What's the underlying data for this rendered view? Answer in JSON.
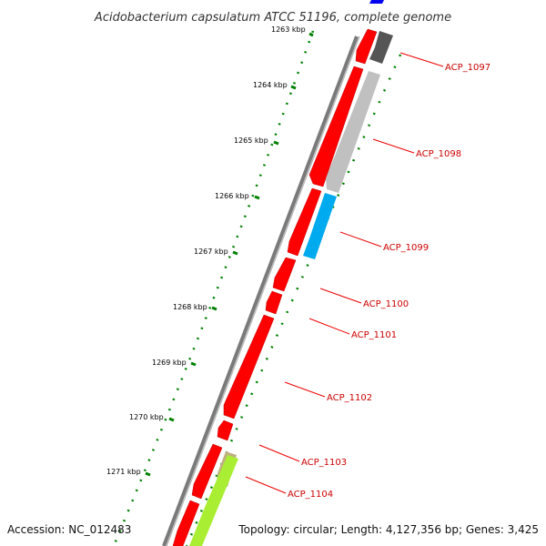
{
  "title": "Acidobacterium capsulatum ATCC 51196, complete genome",
  "footer": {
    "accession": "Accession: NC_012483",
    "topology": "Topology: circular; Length: 4,127,356 bp; Genes: 3,425"
  },
  "ticks": [
    "1263 kbp",
    "1264 kbp",
    "1265 kbp",
    "1266 kbp",
    "1267 kbp",
    "1268 kbp",
    "1269 kbp",
    "1270 kbp",
    "1271 kbp"
  ],
  "genes": [
    "ACP_1097",
    "ACP_1098",
    "ACP_1099",
    "ACP_1100",
    "ACP_1101",
    "ACP_1102",
    "ACP_1103",
    "ACP_1104"
  ],
  "colors": {
    "backbone": "#808080",
    "forward_cds": "#ff0000",
    "dark_gray": "#555555",
    "light_gray": "#c0c0c0",
    "cyan": "#00aaee",
    "tan": "#c0b080",
    "lime": "#aaee33",
    "blue": "#0000ee",
    "tick_dots": "#008000",
    "label_red": "#cc0000"
  }
}
